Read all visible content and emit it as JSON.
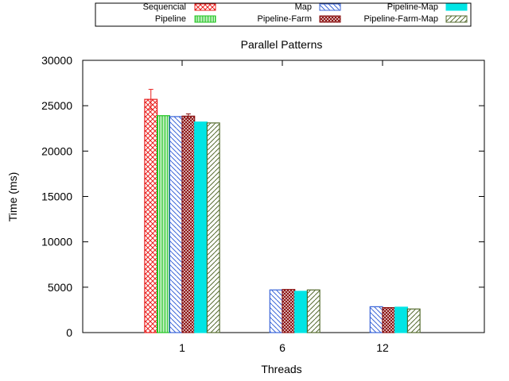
{
  "chart_data": {
    "type": "bar",
    "title": "Parallel Patterns",
    "xlabel": "Threads",
    "ylabel": "Time (ms)",
    "categories": [
      "1",
      "6",
      "12"
    ],
    "ylim": [
      0,
      30000
    ],
    "yticks": [
      "0",
      "5000",
      "10000",
      "15000",
      "20000",
      "25000",
      "30000"
    ],
    "grid": false,
    "legend_position": "top",
    "series": [
      {
        "name": "Sequencial",
        "values": [
          25700,
          null,
          null
        ],
        "error": [
          1100,
          null,
          null
        ],
        "color": "#e8201e",
        "pattern": "crosshatch"
      },
      {
        "name": "Pipeline",
        "values": [
          23900,
          null,
          null
        ],
        "error": [
          null,
          null,
          null
        ],
        "color": "#1ec41e",
        "pattern": "dense-vertical"
      },
      {
        "name": "Map",
        "values": [
          23800,
          4700,
          2850
        ],
        "error": [
          null,
          null,
          null
        ],
        "color": "#3b66d8",
        "pattern": "backslash"
      },
      {
        "name": "Pipeline-Farm",
        "values": [
          23850,
          4750,
          2750
        ],
        "error": [
          250,
          null,
          null
        ],
        "color": "#8b1212",
        "pattern": "dense-crosshatch"
      },
      {
        "name": "Pipeline-Map",
        "values": [
          23200,
          4550,
          2800
        ],
        "error": [
          null,
          null,
          null
        ],
        "color": "#00e5e5",
        "pattern": "solid"
      },
      {
        "name": "Pipeline-Farm-Map",
        "values": [
          23100,
          4700,
          2600
        ],
        "error": [
          null,
          null,
          null
        ],
        "color": "#556b2f",
        "pattern": "slash"
      }
    ]
  }
}
